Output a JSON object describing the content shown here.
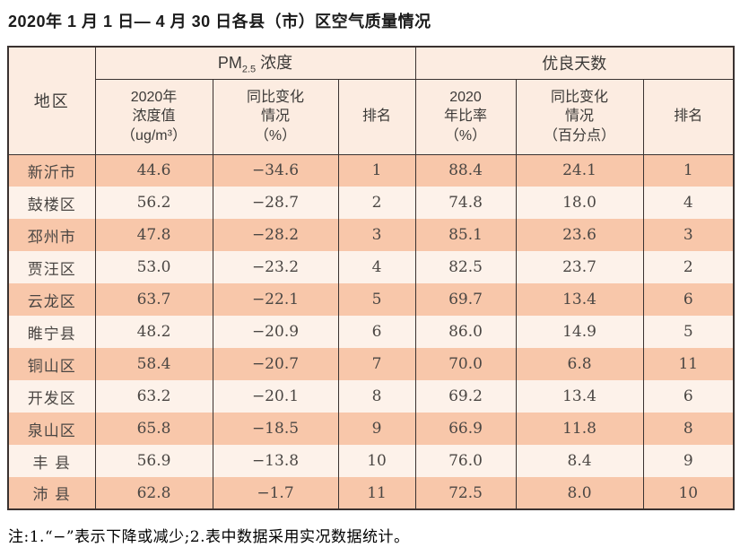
{
  "title": "2020年 1 月 1 日— 4 月 30 日各县（市）区空气质量情况",
  "table": {
    "region_header": "地区",
    "groups": {
      "pm25_prefix": "PM",
      "pm25_sub": "2.5",
      "pm25_suffix": " 浓度",
      "good_days": "优良天数"
    },
    "sub_headers": [
      "2020年\n浓度值\n（ug/m³）",
      "同比变化\n情况\n（%）",
      "排名",
      "2020\n年比率\n（%）",
      "同比变化\n情况\n（百分点）",
      "排名"
    ],
    "rows": [
      [
        "新沂市",
        "44.6",
        "−34.6",
        "1",
        "88.4",
        "24.1",
        "1"
      ],
      [
        "鼓楼区",
        "56.2",
        "−28.7",
        "2",
        "74.8",
        "18.0",
        "4"
      ],
      [
        "邳州市",
        "47.8",
        "−28.2",
        "3",
        "85.1",
        "23.6",
        "3"
      ],
      [
        "贾汪区",
        "53.0",
        "−23.2",
        "4",
        "82.5",
        "23.7",
        "2"
      ],
      [
        "云龙区",
        "63.7",
        "−22.1",
        "5",
        "69.7",
        "13.4",
        "6"
      ],
      [
        "睢宁县",
        "48.2",
        "−20.9",
        "6",
        "86.0",
        "14.9",
        "5"
      ],
      [
        "铜山区",
        "58.4",
        "−20.7",
        "7",
        "70.0",
        "6.8",
        "11"
      ],
      [
        "开发区",
        "63.2",
        "−20.1",
        "8",
        "69.2",
        "13.4",
        "6"
      ],
      [
        "泉山区",
        "65.8",
        "−18.5",
        "9",
        "66.9",
        "11.8",
        "8"
      ],
      [
        "丰 县",
        "56.9",
        "−13.8",
        "10",
        "76.0",
        "8.4",
        "9"
      ],
      [
        "沛 县",
        "62.8",
        "−1.7",
        "11",
        "72.5",
        "8.0",
        "10"
      ]
    ]
  },
  "footnote": "注:1.“−”表示下降或减少;2.表中数据采用实况数据统计。",
  "colors": {
    "row_odd": "#f8c7aa",
    "row_even": "#fdf2ea",
    "header_bg": "#fcece1",
    "border": "#3a3230"
  }
}
